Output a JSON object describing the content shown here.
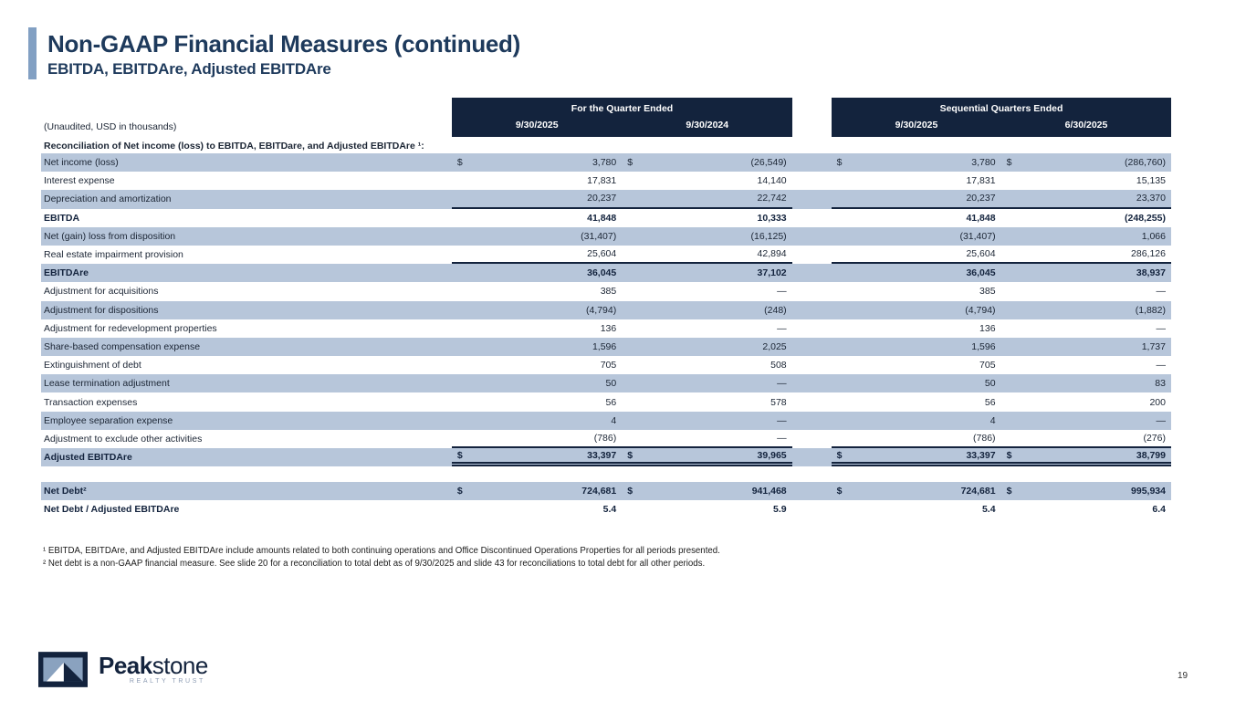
{
  "slide": {
    "title": "Non-GAAP Financial Measures (continued)",
    "subtitle": "EBITDA, EBITDAre, Adjusted EBITDAre",
    "page_number": "19"
  },
  "table": {
    "unaudited_note": "(Unaudited, USD in thousands)",
    "section_header": "Reconciliation of Net income (loss) to EBITDA, EBITDare, and Adjusted EBITDAre ¹:",
    "column_groups": [
      {
        "label": "For the Quarter Ended",
        "columns": [
          "9/30/2025",
          "9/30/2024"
        ]
      },
      {
        "label": "Sequential Quarters Ended",
        "columns": [
          "9/30/2025",
          "6/30/2025"
        ]
      }
    ],
    "rows": [
      {
        "label": "Net income (loss)",
        "dollar": true,
        "shaded": true,
        "bold": false,
        "rule_bottom": false,
        "double_bottom": false,
        "values": [
          "3,780",
          "(26,549)",
          "3,780",
          "(286,760)"
        ]
      },
      {
        "label": "Interest expense",
        "dollar": false,
        "shaded": false,
        "bold": false,
        "rule_bottom": false,
        "double_bottom": false,
        "values": [
          "17,831",
          "14,140",
          "17,831",
          "15,135"
        ]
      },
      {
        "label": "Depreciation and amortization",
        "dollar": false,
        "shaded": true,
        "bold": false,
        "rule_bottom": true,
        "double_bottom": false,
        "values": [
          "20,237",
          "22,742",
          "20,237",
          "23,370"
        ]
      },
      {
        "label": "EBITDA",
        "dollar": false,
        "shaded": false,
        "bold": true,
        "rule_bottom": false,
        "double_bottom": false,
        "values": [
          "41,848",
          "10,333",
          "41,848",
          "(248,255)"
        ]
      },
      {
        "label": "Net (gain) loss from disposition",
        "dollar": false,
        "shaded": true,
        "bold": false,
        "rule_bottom": false,
        "double_bottom": false,
        "values": [
          "(31,407)",
          "(16,125)",
          "(31,407)",
          "1,066"
        ]
      },
      {
        "label": "Real estate impairment provision",
        "dollar": false,
        "shaded": false,
        "bold": false,
        "rule_bottom": true,
        "double_bottom": false,
        "values": [
          "25,604",
          "42,894",
          "25,604",
          "286,126"
        ]
      },
      {
        "label": "EBITDAre",
        "dollar": false,
        "shaded": true,
        "bold": true,
        "rule_bottom": false,
        "double_bottom": false,
        "values": [
          "36,045",
          "37,102",
          "36,045",
          "38,937"
        ]
      },
      {
        "label": "Adjustment for acquisitions",
        "dollar": false,
        "shaded": false,
        "bold": false,
        "rule_bottom": false,
        "double_bottom": false,
        "values": [
          "385",
          "—",
          "385",
          "—"
        ]
      },
      {
        "label": "Adjustment for dispositions",
        "dollar": false,
        "shaded": true,
        "bold": false,
        "rule_bottom": false,
        "double_bottom": false,
        "values": [
          "(4,794)",
          "(248)",
          "(4,794)",
          "(1,882)"
        ]
      },
      {
        "label": "Adjustment for redevelopment properties",
        "dollar": false,
        "shaded": false,
        "bold": false,
        "rule_bottom": false,
        "double_bottom": false,
        "values": [
          "136",
          "—",
          "136",
          "—"
        ]
      },
      {
        "label": "Share-based compensation expense",
        "dollar": false,
        "shaded": true,
        "bold": false,
        "rule_bottom": false,
        "double_bottom": false,
        "values": [
          "1,596",
          "2,025",
          "1,596",
          "1,737"
        ]
      },
      {
        "label": "Extinguishment of debt",
        "dollar": false,
        "shaded": false,
        "bold": false,
        "rule_bottom": false,
        "double_bottom": false,
        "values": [
          "705",
          "508",
          "705",
          "—"
        ]
      },
      {
        "label": "Lease termination adjustment",
        "dollar": false,
        "shaded": true,
        "bold": false,
        "rule_bottom": false,
        "double_bottom": false,
        "values": [
          "50",
          "—",
          "50",
          "83"
        ]
      },
      {
        "label": "Transaction expenses",
        "dollar": false,
        "shaded": false,
        "bold": false,
        "rule_bottom": false,
        "double_bottom": false,
        "values": [
          "56",
          "578",
          "56",
          "200"
        ]
      },
      {
        "label": "Employee separation expense",
        "dollar": false,
        "shaded": true,
        "bold": false,
        "rule_bottom": false,
        "double_bottom": false,
        "values": [
          "4",
          "—",
          "4",
          "—"
        ]
      },
      {
        "label": "Adjustment to exclude other activities",
        "dollar": false,
        "shaded": false,
        "bold": false,
        "rule_bottom": true,
        "double_bottom": false,
        "values": [
          "(786)",
          "—",
          "(786)",
          "(276)"
        ]
      },
      {
        "label": "Adjusted EBITDAre",
        "dollar": true,
        "shaded": true,
        "bold": true,
        "rule_bottom": false,
        "double_bottom": true,
        "values": [
          "33,397",
          "39,965",
          "33,397",
          "38,799"
        ]
      }
    ],
    "net_debt_rows": [
      {
        "label": "Net Debt²",
        "dollar": true,
        "shaded": true,
        "bold": true,
        "rule_bottom": false,
        "double_bottom": false,
        "values": [
          "724,681",
          "941,468",
          "724,681",
          "995,934"
        ]
      },
      {
        "label": "Net Debt / Adjusted EBITDAre",
        "dollar": false,
        "shaded": false,
        "bold": true,
        "rule_bottom": false,
        "double_bottom": false,
        "values": [
          "5.4",
          "5.9",
          "5.4",
          "6.4"
        ]
      }
    ]
  },
  "footnotes": [
    "¹ EBITDA, EBITDAre, and Adjusted EBITDAre include amounts related to both continuing operations and Office Discontinued Operations Properties for all periods presented.",
    "² Net debt is a non-GAAP financial measure. See slide 20 for a reconciliation to total debt as of 9/30/2025 and slide 43 for reconciliations to total debt for all other periods."
  ],
  "logo": {
    "brand_bold": "Peak",
    "brand_light": "stone",
    "tagline": "REALTY TRUST"
  },
  "colors": {
    "header_navy": "#13233d",
    "row_stripe_blue": "#b7c6da",
    "accent_bar_blue": "#82a0c3",
    "title_navy": "#1e3a5c",
    "logo_inner_blue": "#8aa2bf"
  }
}
